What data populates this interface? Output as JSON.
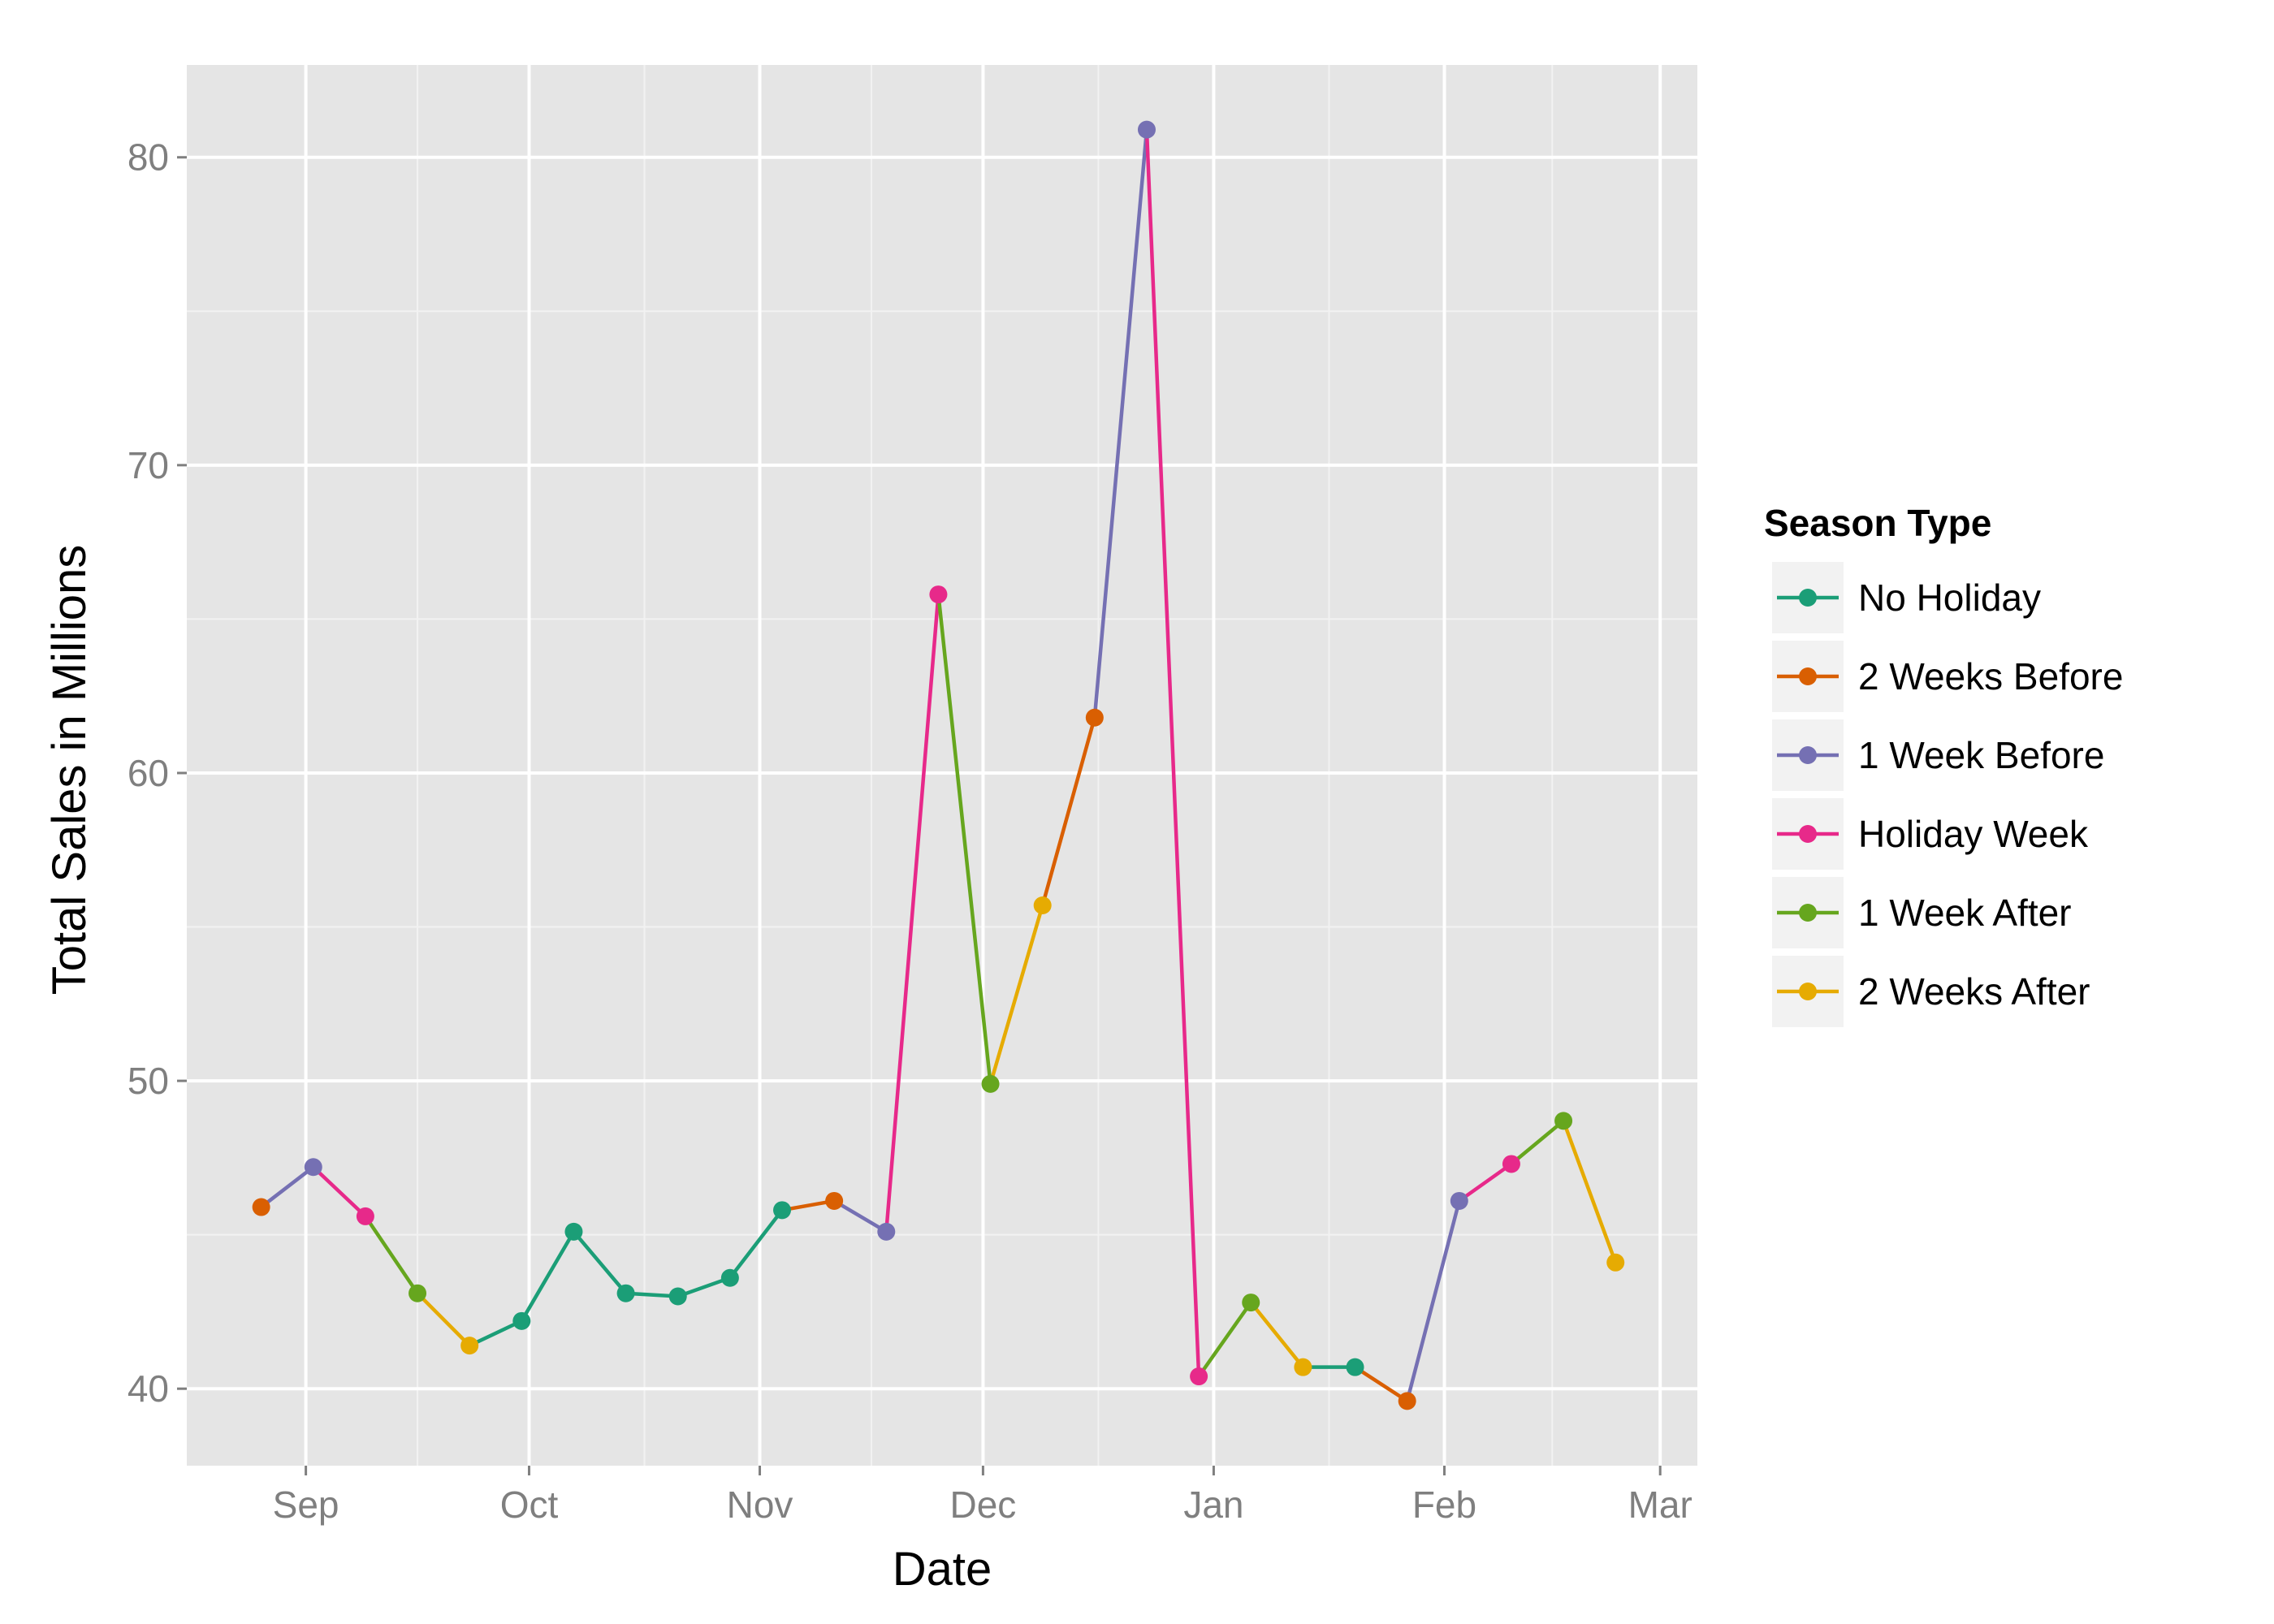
{
  "chart_data": {
    "type": "line",
    "xlabel": "Date",
    "ylabel": "Total Sales in Millions",
    "x_tick_labels": [
      "Sep",
      "Oct",
      "Nov",
      "Dec",
      "Jan",
      "Feb",
      "Mar"
    ],
    "x_tick_dates": [
      "2011-09-01",
      "2011-10-01",
      "2011-11-01",
      "2011-12-01",
      "2012-01-01",
      "2012-02-01",
      "2012-03-01"
    ],
    "y_ticks": [
      40,
      50,
      60,
      70,
      80
    ],
    "ylim": [
      37.5,
      83
    ],
    "xlim": [
      "2011-08-16",
      "2012-03-06"
    ],
    "grid": true,
    "legend": {
      "title": "Season Type",
      "placement": "right",
      "entries": [
        {
          "label": "No Holiday",
          "color": "#1b9e77"
        },
        {
          "label": "2 Weeks Before",
          "color": "#d95f02"
        },
        {
          "label": "1 Week Before",
          "color": "#7570b3"
        },
        {
          "label": "Holiday Week",
          "color": "#e7298a"
        },
        {
          "label": "1 Week After",
          "color": "#66a61e"
        },
        {
          "label": "2 Weeks After",
          "color": "#e6ab02"
        }
      ]
    },
    "points": [
      {
        "x": "2011-08-26",
        "y": 45.9,
        "series": "2 Weeks Before"
      },
      {
        "x": "2011-09-02",
        "y": 47.2,
        "series": "1 Week Before"
      },
      {
        "x": "2011-09-09",
        "y": 45.6,
        "series": "Holiday Week"
      },
      {
        "x": "2011-09-16",
        "y": 43.1,
        "series": "1 Week After"
      },
      {
        "x": "2011-09-23",
        "y": 41.4,
        "series": "2 Weeks After"
      },
      {
        "x": "2011-09-30",
        "y": 42.2,
        "series": "No Holiday"
      },
      {
        "x": "2011-10-07",
        "y": 45.1,
        "series": "No Holiday"
      },
      {
        "x": "2011-10-14",
        "y": 43.1,
        "series": "No Holiday"
      },
      {
        "x": "2011-10-21",
        "y": 43.0,
        "series": "No Holiday"
      },
      {
        "x": "2011-10-28",
        "y": 43.6,
        "series": "No Holiday"
      },
      {
        "x": "2011-11-04",
        "y": 45.8,
        "series": "No Holiday"
      },
      {
        "x": "2011-11-11",
        "y": 46.1,
        "series": "2 Weeks Before"
      },
      {
        "x": "2011-11-18",
        "y": 45.1,
        "series": "1 Week Before"
      },
      {
        "x": "2011-11-25",
        "y": 65.8,
        "series": "Holiday Week"
      },
      {
        "x": "2011-12-02",
        "y": 49.9,
        "series": "1 Week After"
      },
      {
        "x": "2011-12-09",
        "y": 55.7,
        "series": "2 Weeks After"
      },
      {
        "x": "2011-12-16",
        "y": 61.8,
        "series": "2 Weeks Before"
      },
      {
        "x": "2011-12-23",
        "y": 80.9,
        "series": "1 Week Before"
      },
      {
        "x": "2011-12-30",
        "y": 40.4,
        "series": "Holiday Week"
      },
      {
        "x": "2012-01-06",
        "y": 42.8,
        "series": "1 Week After"
      },
      {
        "x": "2012-01-13",
        "y": 40.7,
        "series": "2 Weeks After"
      },
      {
        "x": "2012-01-20",
        "y": 40.7,
        "series": "No Holiday"
      },
      {
        "x": "2012-01-27",
        "y": 39.6,
        "series": "2 Weeks Before"
      },
      {
        "x": "2012-02-03",
        "y": 46.1,
        "series": "1 Week Before"
      },
      {
        "x": "2012-02-10",
        "y": 47.3,
        "series": "Holiday Week"
      },
      {
        "x": "2012-02-17",
        "y": 48.7,
        "series": "1 Week After"
      },
      {
        "x": "2012-02-24",
        "y": 44.1,
        "series": "2 Weeks After"
      }
    ]
  }
}
